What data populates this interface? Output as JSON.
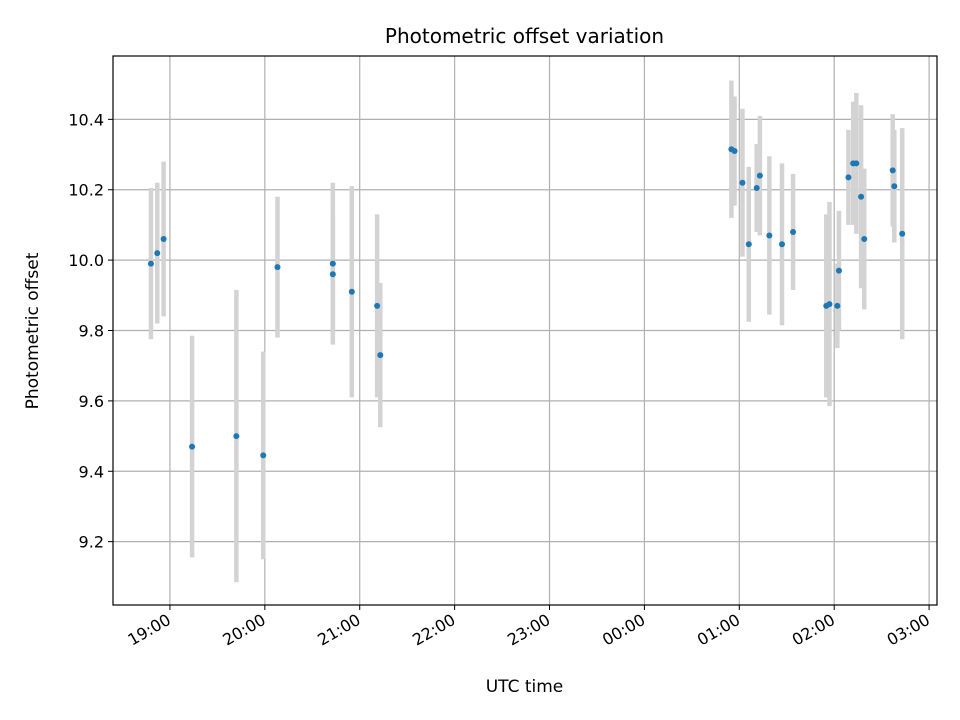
{
  "chart_data": {
    "type": "scatter",
    "title": "Photometric offset variation",
    "xlabel": "UTC time",
    "ylabel": "Photometric offset",
    "x_axis_type": "time",
    "xlim": [
      "2023-01-01T18:24",
      "2023-01-02T03:05"
    ],
    "ylim": [
      9.02,
      10.58
    ],
    "x_ticks": [
      {
        "t": "2023-01-01T19:00",
        "label": "19:00"
      },
      {
        "t": "2023-01-01T20:00",
        "label": "20:00"
      },
      {
        "t": "2023-01-01T21:00",
        "label": "21:00"
      },
      {
        "t": "2023-01-01T22:00",
        "label": "22:00"
      },
      {
        "t": "2023-01-01T23:00",
        "label": "23:00"
      },
      {
        "t": "2023-01-02T00:00",
        "label": "00:00"
      },
      {
        "t": "2023-01-02T01:00",
        "label": "01:00"
      },
      {
        "t": "2023-01-02T02:00",
        "label": "02:00"
      },
      {
        "t": "2023-01-02T03:00",
        "label": "03:00"
      }
    ],
    "y_ticks": [
      {
        "v": 9.2,
        "label": "9.2"
      },
      {
        "v": 9.4,
        "label": "9.4"
      },
      {
        "v": 9.6,
        "label": "9.6"
      },
      {
        "v": 9.8,
        "label": "9.8"
      },
      {
        "v": 10.0,
        "label": "10.0"
      },
      {
        "v": 10.2,
        "label": "10.2"
      },
      {
        "v": 10.4,
        "label": "10.4"
      }
    ],
    "grid": true,
    "point_color": "#1f77b4",
    "errorbar_color": "#d3d3d3",
    "points": [
      {
        "t": "2023-01-01T18:48",
        "y": 9.99,
        "err": 0.215
      },
      {
        "t": "2023-01-01T18:52",
        "y": 10.02,
        "err": 0.2
      },
      {
        "t": "2023-01-01T18:56",
        "y": 10.06,
        "err": 0.22
      },
      {
        "t": "2023-01-01T19:14",
        "y": 9.47,
        "err": 0.315
      },
      {
        "t": "2023-01-01T19:42",
        "y": 9.5,
        "err": 0.415
      },
      {
        "t": "2023-01-01T19:59",
        "y": 9.445,
        "err": 0.295
      },
      {
        "t": "2023-01-01T20:08",
        "y": 9.98,
        "err": 0.2
      },
      {
        "t": "2023-01-01T20:43",
        "y": 9.99,
        "err": 0.23
      },
      {
        "t": "2023-01-01T20:43",
        "y": 9.96,
        "err": 0.17
      },
      {
        "t": "2023-01-01T20:55",
        "y": 9.91,
        "err": 0.3
      },
      {
        "t": "2023-01-01T21:11",
        "y": 9.87,
        "err": 0.26
      },
      {
        "t": "2023-01-01T21:13",
        "y": 9.73,
        "err": 0.205
      },
      {
        "t": "2023-01-02T00:55",
        "y": 10.315,
        "err": 0.195
      },
      {
        "t": "2023-01-02T00:57",
        "y": 10.31,
        "err": 0.155
      },
      {
        "t": "2023-01-02T01:02",
        "y": 10.22,
        "err": 0.21
      },
      {
        "t": "2023-01-02T01:06",
        "y": 10.045,
        "err": 0.22
      },
      {
        "t": "2023-01-02T01:11",
        "y": 10.205,
        "err": 0.125
      },
      {
        "t": "2023-01-02T01:13",
        "y": 10.24,
        "err": 0.17
      },
      {
        "t": "2023-01-02T01:19",
        "y": 10.07,
        "err": 0.225
      },
      {
        "t": "2023-01-02T01:27",
        "y": 10.045,
        "err": 0.23
      },
      {
        "t": "2023-01-02T01:34",
        "y": 10.08,
        "err": 0.165
      },
      {
        "t": "2023-01-02T01:55",
        "y": 9.87,
        "err": 0.26
      },
      {
        "t": "2023-01-02T01:57",
        "y": 9.875,
        "err": 0.29
      },
      {
        "t": "2023-01-02T02:02",
        "y": 9.87,
        "err": 0.12
      },
      {
        "t": "2023-01-02T02:03",
        "y": 9.97,
        "err": 0.17
      },
      {
        "t": "2023-01-02T02:09",
        "y": 10.235,
        "err": 0.135
      },
      {
        "t": "2023-01-02T02:12",
        "y": 10.275,
        "err": 0.175
      },
      {
        "t": "2023-01-02T02:14",
        "y": 10.275,
        "err": 0.2
      },
      {
        "t": "2023-01-02T02:17",
        "y": 10.18,
        "err": 0.26
      },
      {
        "t": "2023-01-02T02:19",
        "y": 10.06,
        "err": 0.2
      },
      {
        "t": "2023-01-02T02:37",
        "y": 10.255,
        "err": 0.16
      },
      {
        "t": "2023-01-02T02:38",
        "y": 10.21,
        "err": 0.16
      },
      {
        "t": "2023-01-02T02:43",
        "y": 10.075,
        "err": 0.3
      }
    ]
  }
}
